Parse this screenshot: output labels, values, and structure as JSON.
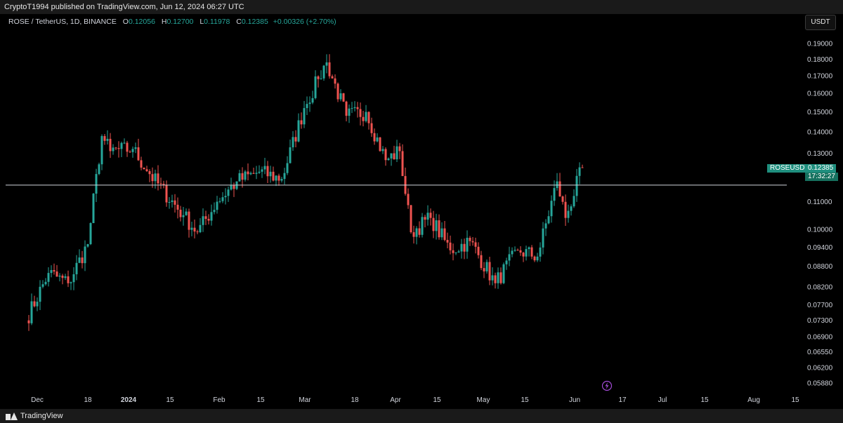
{
  "header": {
    "published_text": "CryptoT1994 published on TradingView.com, Jun 12, 2024 06:27 UTC"
  },
  "symbol": {
    "pair": "ROSE / TetherUS, 1D, BINANCE",
    "o_label": "O",
    "o": "0.12056",
    "h_label": "H",
    "h": "0.12700",
    "l_label": "L",
    "l": "0.11978",
    "c_label": "C",
    "c": "0.12385",
    "change": "+0.00326 (+2.70%)"
  },
  "currency_button": "USDT",
  "price_tag": {
    "ticker": "ROSEUSDT",
    "price": "0.12385",
    "countdown": "17:32:27"
  },
  "footer": {
    "brand": "TradingView"
  },
  "colors": {
    "up": "#26a69a",
    "down": "#ef5350",
    "hline": "#d1d4dc"
  },
  "chart_data": {
    "type": "candlestick",
    "log_scale": true,
    "y_ticks": [
      "0.19000",
      "0.18000",
      "0.17000",
      "0.16000",
      "0.15000",
      "0.14000",
      "0.13000",
      "0.11000",
      "0.10000",
      "0.09400",
      "0.08800",
      "0.08200",
      "0.07700",
      "0.07300",
      "0.06900",
      "0.06550",
      "0.06200",
      "0.05880"
    ],
    "x_ticks": [
      "Dec",
      "18",
      "2024",
      "15",
      "Feb",
      "15",
      "Mar",
      "18",
      "Apr",
      "15",
      "May",
      "15",
      "Jun",
      "17",
      "Jul",
      "15",
      "Aug",
      "15"
    ],
    "horizontal_line": 0.1165,
    "last_price": 0.12385,
    "anchors": [
      {
        "date": "Nov 27",
        "close": 0.073
      },
      {
        "date": "Dec 05",
        "close": 0.086
      },
      {
        "date": "Dec 12",
        "close": 0.083
      },
      {
        "date": "Dec 19",
        "close": 0.095
      },
      {
        "date": "Dec 24",
        "close": 0.138
      },
      {
        "date": "Dec 27",
        "close": 0.131
      },
      {
        "date": "Jan 04",
        "close": 0.132
      },
      {
        "date": "Jan 10",
        "close": 0.121
      },
      {
        "date": "Jan 22",
        "close": 0.105
      },
      {
        "date": "Jan 27",
        "close": 0.099
      },
      {
        "date": "Feb 03",
        "close": 0.11
      },
      {
        "date": "Feb 10",
        "close": 0.118
      },
      {
        "date": "Feb 18",
        "close": 0.122
      },
      {
        "date": "Feb 26",
        "close": 0.119
      },
      {
        "date": "Mar 05",
        "close": 0.152
      },
      {
        "date": "Mar 10",
        "close": 0.168
      },
      {
        "date": "Mar 13",
        "close": 0.178
      },
      {
        "date": "Mar 20",
        "close": 0.148
      },
      {
        "date": "Mar 27",
        "close": 0.15
      },
      {
        "date": "Apr 03",
        "close": 0.127
      },
      {
        "date": "Apr 08",
        "close": 0.131
      },
      {
        "date": "Apr 12",
        "close": 0.099
      },
      {
        "date": "Apr 19",
        "close": 0.104
      },
      {
        "date": "Apr 26",
        "close": 0.093
      },
      {
        "date": "May 03",
        "close": 0.096
      },
      {
        "date": "May 12",
        "close": 0.083
      },
      {
        "date": "May 20",
        "close": 0.093
      },
      {
        "date": "May 27",
        "close": 0.091
      },
      {
        "date": "Jun 03",
        "close": 0.118
      },
      {
        "date": "Jun 06",
        "close": 0.104
      },
      {
        "date": "Jun 12",
        "close": 0.12385
      }
    ]
  }
}
